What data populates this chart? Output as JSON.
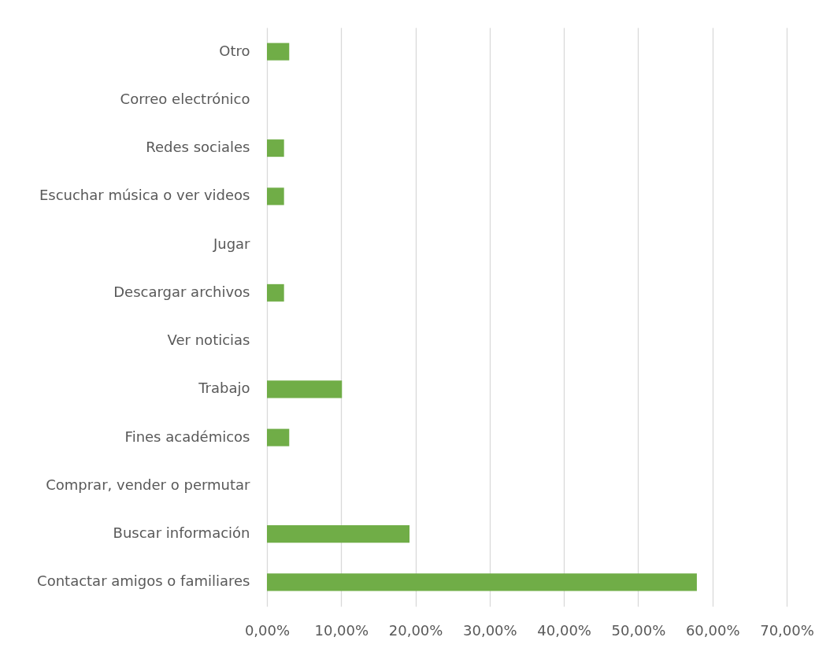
{
  "chart_data": {
    "type": "bar",
    "orientation": "horizontal",
    "categories": [
      "Otro",
      "Correo electrónico",
      "Redes sociales",
      "Escuchar música o ver videos",
      "Jugar",
      "Descargar archivos",
      "Ver noticias",
      "Trabajo",
      "Fines académicos",
      "Comprar, vender o permutar",
      "Buscar información",
      "Contactar amigos o familiares"
    ],
    "values": [
      3.0,
      0,
      2.3,
      2.3,
      0,
      2.3,
      0,
      10.1,
      3.0,
      0,
      19.2,
      57.9
    ],
    "color": "#70ad47",
    "xlim": [
      0,
      70
    ],
    "xticks": [
      {
        "value": 0,
        "label": "0,00%"
      },
      {
        "value": 10,
        "label": "10,00%"
      },
      {
        "value": 20,
        "label": "20,00%"
      },
      {
        "value": 30,
        "label": "30,00%"
      },
      {
        "value": 40,
        "label": "40,00%"
      },
      {
        "value": 50,
        "label": "50,00%"
      },
      {
        "value": 60,
        "label": "60,00%"
      },
      {
        "value": 70,
        "label": "70,00%"
      }
    ],
    "grid": "x"
  }
}
